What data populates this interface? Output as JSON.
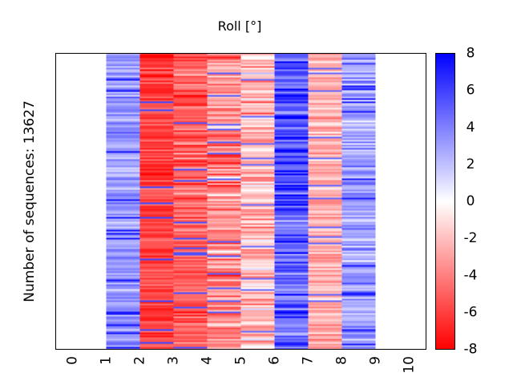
{
  "chart_data": {
    "type": "heatmap",
    "title": "Roll [°]",
    "xlabel": "",
    "ylabel": "Number of sequences: 13627",
    "xlim": [
      -0.5,
      10.5
    ],
    "x_ticks": [
      "0",
      "1",
      "2",
      "3",
      "4",
      "5",
      "6",
      "7",
      "8",
      "9",
      "10"
    ],
    "x_tick_values": [
      0,
      1,
      2,
      3,
      4,
      5,
      6,
      7,
      8,
      9,
      10
    ],
    "grid": false,
    "num_sequences": 13627,
    "columns": [
      {
        "x_start": 1,
        "x_end": 2,
        "mean": 3.2,
        "spread": 1.6
      },
      {
        "x_start": 2,
        "x_end": 3,
        "mean": -6.0,
        "spread": 1.4
      },
      {
        "x_start": 3,
        "x_end": 4,
        "mean": -5.0,
        "spread": 2.0
      },
      {
        "x_start": 4,
        "x_end": 5,
        "mean": -3.5,
        "spread": 2.8
      },
      {
        "x_start": 5,
        "x_end": 6,
        "mean": -2.0,
        "spread": 2.5
      },
      {
        "x_start": 6,
        "x_end": 7,
        "mean": 5.0,
        "spread": 2.6
      },
      {
        "x_start": 7,
        "x_end": 8,
        "mean": -2.5,
        "spread": 1.5
      },
      {
        "x_start": 8,
        "x_end": 9,
        "mean": 3.0,
        "spread": 2.2
      }
    ],
    "colorbar": {
      "range": [
        -8,
        8
      ],
      "ticks": [
        "8",
        "6",
        "4",
        "2",
        "0",
        "-2",
        "-4",
        "-6",
        "-8"
      ],
      "tick_values": [
        8,
        6,
        4,
        2,
        0,
        -2,
        -4,
        -6,
        -8
      ],
      "colormap": "bwr",
      "color_low": "#ff0000",
      "color_mid": "#ffffff",
      "color_high": "#0000ff",
      "placement": "right"
    }
  }
}
